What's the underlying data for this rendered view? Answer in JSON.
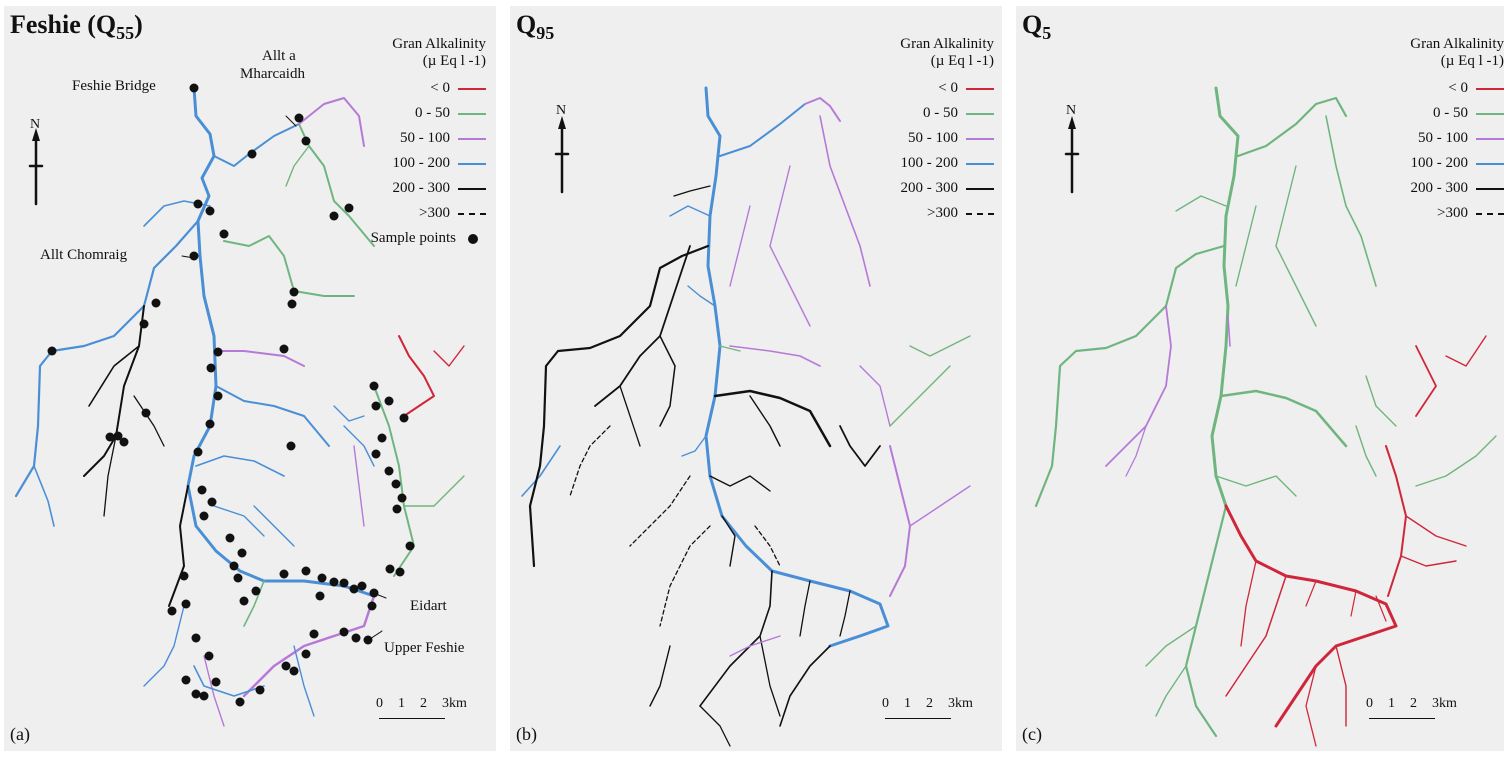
{
  "panels": [
    {
      "title_main": "Feshie (Q",
      "title_sub": "55",
      "title_close": ")",
      "label": "(a)"
    },
    {
      "title_main": "Q",
      "title_sub": "95",
      "title_close": "",
      "label": "(b)"
    },
    {
      "title_main": "Q",
      "title_sub": "5",
      "title_close": "",
      "label": "(c)"
    }
  ],
  "legend": {
    "title": "Gran Alkalinity",
    "units": "(µ Eq l -1)",
    "classes": [
      {
        "label": "< 0",
        "color": "#d0263a"
      },
      {
        "label": "0 - 50",
        "color": "#6fb57f"
      },
      {
        "label": "50 - 100",
        "color": "#b679d8"
      },
      {
        "label": "100 - 200",
        "color": "#4a8fd6"
      },
      {
        "label": "200 - 300",
        "color": "#111111"
      },
      {
        "label": ">300",
        "color": "#111111"
      }
    ],
    "sample_points": "Sample points"
  },
  "place_names": {
    "feshie_bridge": "Feshie Bridge",
    "allt_a_mharcaidh_1": "Allt a",
    "allt_a_mharcaidh_2": "Mharcaidh",
    "allt_chomraig": "Allt Chomraig",
    "eidart": "Eidart",
    "upper_feshie": "Upper Feshie"
  },
  "north": "N",
  "scale": {
    "t0": "0",
    "t1": "1",
    "t2": "2",
    "t3": "3km"
  }
}
